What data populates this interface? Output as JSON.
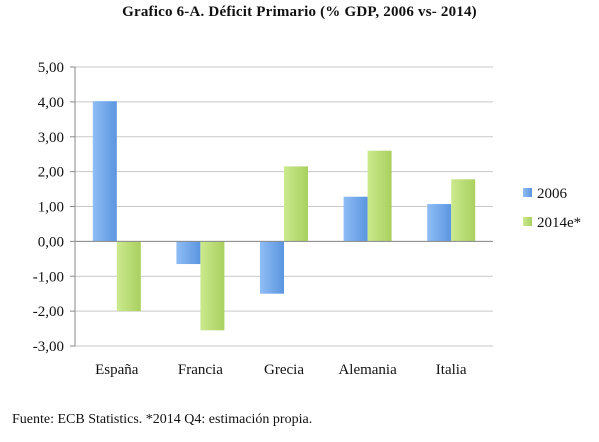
{
  "chart_data": {
    "type": "bar",
    "title": "Grafico 6-A. Déficit Primario (% GDP, 2006 vs- 2014)",
    "categories": [
      "España",
      "Francia",
      "Grecia",
      "Alemania",
      "Italia"
    ],
    "series": [
      {
        "name": "2006",
        "values": [
          4.02,
          -0.65,
          -1.5,
          1.28,
          1.07
        ],
        "color": "#6fa5ea"
      },
      {
        "name": "2014e*",
        "values": [
          -2.0,
          -2.55,
          2.15,
          2.6,
          1.78
        ],
        "color": "#b9dc72"
      }
    ],
    "yticks": [
      "5,00",
      "4,00",
      "3,00",
      "2,00",
      "1,00",
      "0,00",
      "-1,00",
      "-2,00",
      "-3,00"
    ],
    "ylim": [
      -3,
      5
    ],
    "grid": true,
    "legend_position": "right"
  },
  "footnote": "Fuente: ECB Statistics. *2014 Q4: estimación propia."
}
